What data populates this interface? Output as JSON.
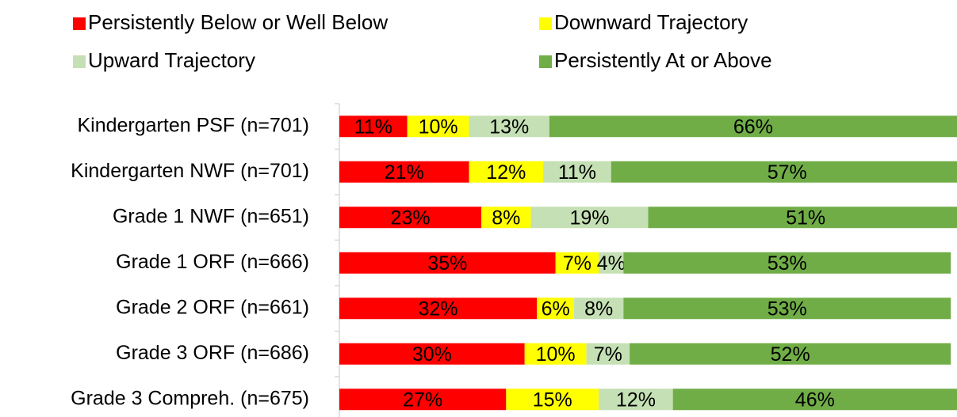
{
  "chart_data": {
    "type": "stacked-bar-horizontal",
    "categories": [
      "Kindergarten PSF (n=701)",
      "Kindergarten NWF (n=701)",
      "Grade 1 NWF (n=651)",
      "Grade 1 ORF (n=666)",
      "Grade 2 ORF (n=661)",
      "Grade 3 ORF (n=686)",
      "Grade 3 Compreh. (n=675)"
    ],
    "series": [
      {
        "name": "Persistently Below or Well Below",
        "color": "#ff0000",
        "values": [
          11,
          21,
          23,
          35,
          32,
          30,
          27
        ],
        "value_labels": [
          "11%",
          "21%",
          "23%",
          "35%",
          "32%",
          "30%",
          "27%"
        ]
      },
      {
        "name": "Downward Trajectory",
        "color": "#ffff00",
        "values": [
          10,
          12,
          8,
          7,
          6,
          10,
          15
        ],
        "value_labels": [
          "10%",
          "12%",
          "8%",
          "7%",
          "6%",
          "10%",
          "15%"
        ]
      },
      {
        "name": "Upward Trajectory",
        "color": "#c5e0b4",
        "values": [
          13,
          11,
          19,
          4,
          8,
          7,
          12
        ],
        "value_labels": [
          "13%",
          "11%",
          "19%",
          "4%",
          "8%",
          "7%",
          "12%"
        ]
      },
      {
        "name": "Persistently At or Above",
        "color": "#70ad47",
        "values": [
          66,
          57,
          51,
          53,
          53,
          52,
          46
        ],
        "value_labels": [
          "66%",
          "57%",
          "51%",
          "53%",
          "53%",
          "52%",
          "46%"
        ]
      }
    ],
    "xlim": [
      0,
      100
    ],
    "legend": "top"
  }
}
